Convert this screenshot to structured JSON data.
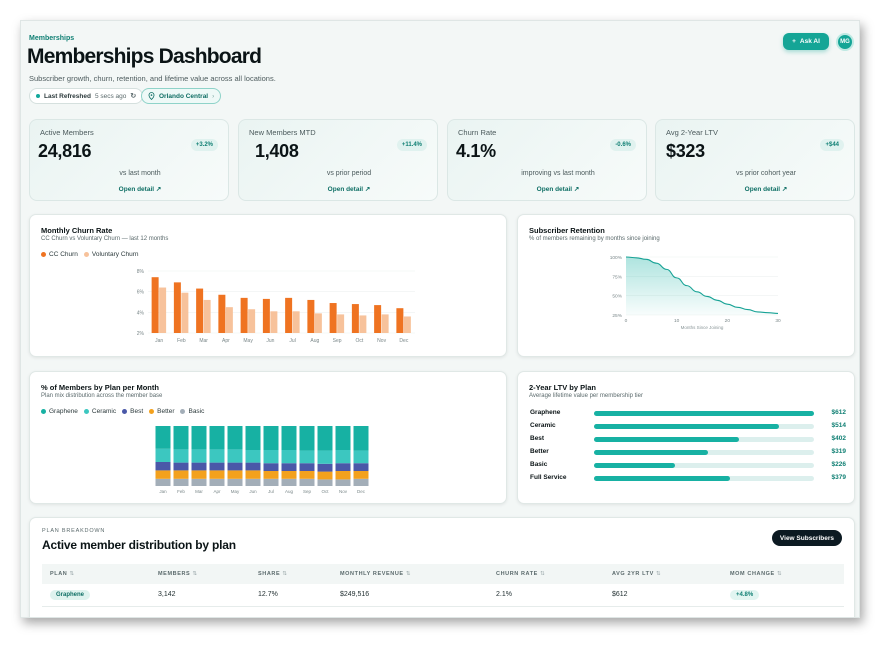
{
  "header": {
    "eyebrow": "Memberships",
    "title": "Memberships Dashboard",
    "subtitle": "Subscriber growth, churn, retention, and lifetime value across all locations.",
    "last_refreshed_label": "Last Refreshed",
    "last_refreshed_value": "5 secs ago",
    "location": "Orlando Central",
    "ask_ai": "Ask AI",
    "avatar_initials": "MG"
  },
  "kpis": [
    {
      "label": "Active Members",
      "value": "24,816",
      "delta": "+3.2%",
      "compare": "vs last month",
      "link": "Open detail ↗"
    },
    {
      "label": "New Members MTD",
      "value": "1,408",
      "delta": "+11.4%",
      "compare": "vs prior period",
      "link": "Open detail ↗"
    },
    {
      "label": "Churn Rate",
      "value": "4.1%",
      "delta": "-0.6%",
      "compare": "improving vs last month",
      "link": "Open detail ↗"
    },
    {
      "label": "Avg 2-Year LTV",
      "value": "$323",
      "delta": "+$44",
      "compare": "vs prior cohort year",
      "link": "Open detail ↗"
    }
  ],
  "churn_card": {
    "title": "Monthly Churn Rate",
    "subtitle": "CC Churn vs Voluntary Churn — last 12 months"
  },
  "retention_card": {
    "title": "Subscriber Retention",
    "subtitle": "% of members remaining by months since joining"
  },
  "plan_mix_card": {
    "title": "% of Members by Plan per Month",
    "subtitle": "Plan mix distribution across the member base"
  },
  "ltv_card": {
    "title": "2-Year LTV by Plan",
    "subtitle": "Average lifetime value per membership tier",
    "rows": [
      {
        "name": "Graphene",
        "amount": "$612",
        "fraction": 1.0
      },
      {
        "name": "Ceramic",
        "amount": "$514",
        "fraction": 0.84
      },
      {
        "name": "Best",
        "amount": "$402",
        "fraction": 0.66
      },
      {
        "name": "Better",
        "amount": "$319",
        "fraction": 0.52
      },
      {
        "name": "Basic",
        "amount": "$226",
        "fraction": 0.37
      },
      {
        "name": "Full Service",
        "amount": "$379",
        "fraction": 0.62
      }
    ]
  },
  "colors": {
    "accent": "#14a596",
    "cc": "#ef7321",
    "vol": "#f7c29b",
    "graphene": "#17b1a3",
    "ceramic": "#3cc7c0",
    "best": "#4a58a8",
    "better": "#f3a11d",
    "basic": "#a3aeb8"
  },
  "chart_data": [
    {
      "type": "bar",
      "categories": [
        "Jan",
        "Feb",
        "Mar",
        "Apr",
        "May",
        "Jun",
        "Jul",
        "Aug",
        "Sep",
        "Oct",
        "Nov",
        "Dec"
      ],
      "series": [
        {
          "name": "CC Churn",
          "values": [
            7.4,
            6.9,
            6.3,
            5.7,
            5.4,
            5.3,
            5.4,
            5.2,
            4.9,
            4.8,
            4.7,
            4.4
          ]
        },
        {
          "name": "Voluntary Churn",
          "values": [
            6.4,
            5.9,
            5.2,
            4.5,
            4.3,
            4.1,
            4.1,
            3.9,
            3.8,
            3.7,
            3.8,
            3.6
          ]
        }
      ],
      "yticks": [
        "2%",
        "4%",
        "6%",
        "8%"
      ],
      "ylim": [
        2,
        8
      ],
      "legend": "top-left",
      "grid": true
    },
    {
      "type": "area",
      "x": [
        0,
        2,
        4,
        6,
        8,
        10,
        12,
        14,
        16,
        18,
        20,
        22,
        24,
        26,
        28,
        30,
        32
      ],
      "values": [
        100,
        99,
        97,
        92,
        84,
        73,
        63,
        55,
        49,
        44,
        39,
        35,
        32,
        29,
        28,
        27,
        27
      ],
      "xticks": [
        "0",
        "10",
        "20",
        "30"
      ],
      "yticks": [
        "25%",
        "50%",
        "75%",
        "100%"
      ],
      "xlabel": "Months Since Joining",
      "ylim": [
        25,
        100
      ],
      "xlim": [
        0,
        30
      ],
      "grid": true
    },
    {
      "type": "bar",
      "stacked": true,
      "categories": [
        "Jan",
        "Feb",
        "Mar",
        "Apr",
        "May",
        "Jun",
        "Jul",
        "Aug",
        "Sep",
        "Oct",
        "Nov",
        "Dec"
      ],
      "series": [
        {
          "name": "Graphene",
          "values": [
            38,
            39,
            39,
            39,
            39,
            40,
            40,
            40,
            41,
            41,
            40,
            41
          ]
        },
        {
          "name": "Ceramic",
          "values": [
            22,
            22,
            22,
            22,
            22,
            21,
            22,
            22,
            21,
            22,
            22,
            21
          ]
        },
        {
          "name": "Best",
          "values": [
            14,
            13,
            13,
            13,
            13,
            13,
            13,
            13,
            13,
            13,
            13,
            13
          ]
        },
        {
          "name": "Better",
          "values": [
            14,
            14,
            14,
            14,
            14,
            14,
            13,
            13,
            13,
            13,
            14,
            13
          ]
        },
        {
          "name": "Basic",
          "values": [
            12,
            12,
            12,
            12,
            12,
            12,
            12,
            12,
            12,
            11,
            11,
            12
          ]
        }
      ],
      "ylim": [
        0,
        100
      ],
      "legend": "top-left"
    }
  ],
  "breakdown": {
    "eyebrow": "PLAN BREAKDOWN",
    "title": "Active member distribution by plan",
    "button": "View Subscribers",
    "columns": [
      "PLAN",
      "MEMBERS",
      "SHARE",
      "MONTHLY REVENUE",
      "CHURN RATE",
      "AVG 2YR LTV",
      "MOM CHANGE"
    ],
    "sort_glyph": "⇅",
    "rows": [
      {
        "plan": "Graphene",
        "members": "3,142",
        "share": "12.7%",
        "revenue": "$249,516",
        "churn": "2.1%",
        "ltv": "$612",
        "change": "+4.8%"
      }
    ]
  }
}
